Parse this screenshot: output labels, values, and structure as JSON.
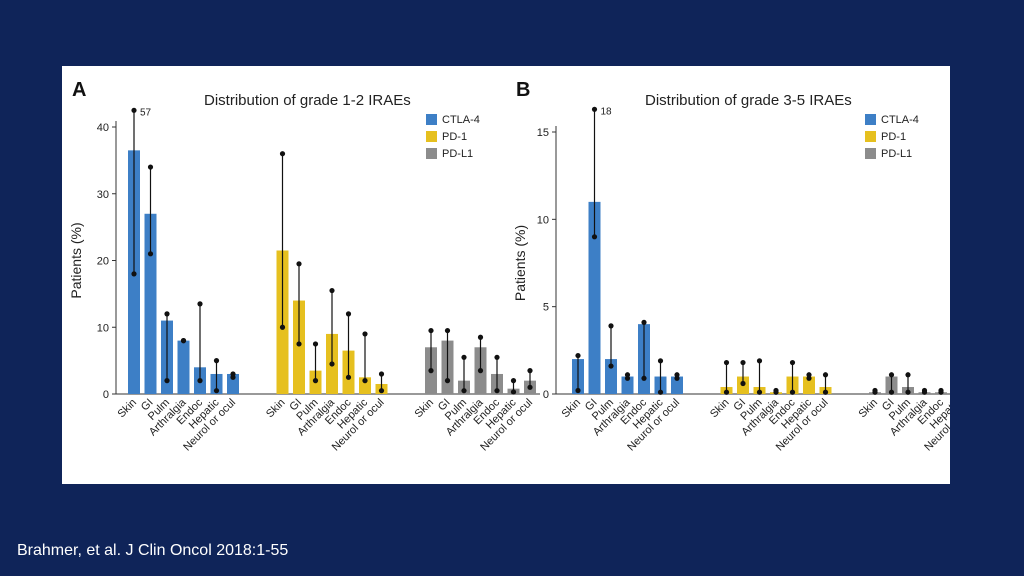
{
  "citation": "Brahmer, et al. J Clin Oncol 2018:1-55",
  "colors": {
    "CTLA-4": "#3d7fc6",
    "PD-1": "#e6c01f",
    "PD-L1": "#8c8c8c",
    "background": "#0f2459"
  },
  "chart_data": [
    {
      "type": "bar",
      "panel_label": "A",
      "title": "Distribution of grade 1-2 IRAEs",
      "ylabel": "Patients (%)",
      "ylim": [
        0,
        40
      ],
      "yticks": [
        0,
        10,
        20,
        30,
        40
      ],
      "categories": [
        "Skin",
        "GI",
        "Pulm",
        "Arthralgia",
        "Endoc",
        "Hepatic",
        "Neurol or ocul"
      ],
      "legend": [
        "CTLA-4",
        "PD-1",
        "PD-L1"
      ],
      "annotation": "57",
      "series": [
        {
          "name": "CTLA-4",
          "values": [
            36.5,
            27,
            11,
            8,
            4,
            3,
            3
          ],
          "err_low": [
            18,
            21,
            2,
            8,
            2,
            0.5,
            2.5
          ],
          "err_high": [
            42.5,
            34,
            12,
            8,
            13.5,
            5,
            3
          ]
        },
        {
          "name": "PD-1",
          "values": [
            21.5,
            14,
            3.5,
            9,
            6.5,
            2.5,
            1.5
          ],
          "err_low": [
            10,
            7.5,
            2,
            4.5,
            2.5,
            2,
            0.5
          ],
          "err_high": [
            36,
            19.5,
            7.5,
            15.5,
            12,
            9,
            3
          ]
        },
        {
          "name": "PD-L1",
          "values": [
            7,
            8,
            2,
            7,
            3,
            0.8,
            2
          ],
          "err_low": [
            3.5,
            2,
            0.5,
            3.5,
            0.5,
            0.3,
            1
          ],
          "err_high": [
            9.5,
            9.5,
            5.5,
            8.5,
            5.5,
            2,
            3.5
          ]
        }
      ]
    },
    {
      "type": "bar",
      "panel_label": "B",
      "title": "Distribution of grade 3-5 IRAEs",
      "ylabel": "Patients (%)",
      "ylim": [
        0,
        15
      ],
      "yticks": [
        0,
        5,
        10,
        15
      ],
      "categories": [
        "Skin",
        "GI",
        "Pulm",
        "Arthralgia",
        "Endoc",
        "Hepatic",
        "Neurol or ocul"
      ],
      "legend": [
        "CTLA-4",
        "PD-1",
        "PD-L1"
      ],
      "annotation": "18",
      "series": [
        {
          "name": "CTLA-4",
          "values": [
            2,
            11,
            2,
            1,
            4,
            1,
            1
          ],
          "err_low": [
            0.2,
            9,
            1.6,
            0.9,
            0.9,
            0.1,
            0.9
          ],
          "err_high": [
            2.2,
            16.3,
            3.9,
            1.1,
            4.1,
            1.9,
            1.1
          ]
        },
        {
          "name": "PD-1",
          "values": [
            0.4,
            1,
            0.4,
            0.1,
            1,
            1,
            0.4
          ],
          "err_low": [
            0.1,
            0.6,
            0.1,
            0.1,
            0.1,
            0.9,
            0.1
          ],
          "err_high": [
            1.8,
            1.8,
            1.9,
            0.2,
            1.8,
            1.1,
            1.1
          ]
        },
        {
          "name": "PD-L1",
          "values": [
            0.1,
            1,
            0.4,
            0.1,
            0.1,
            0.4,
            0.1
          ],
          "err_low": [
            0.1,
            0.1,
            0.1,
            0.1,
            0.1,
            0.1,
            0.1
          ],
          "err_high": [
            0.2,
            1.1,
            1.1,
            0.2,
            0.2,
            1.1,
            0.2
          ]
        }
      ]
    }
  ]
}
